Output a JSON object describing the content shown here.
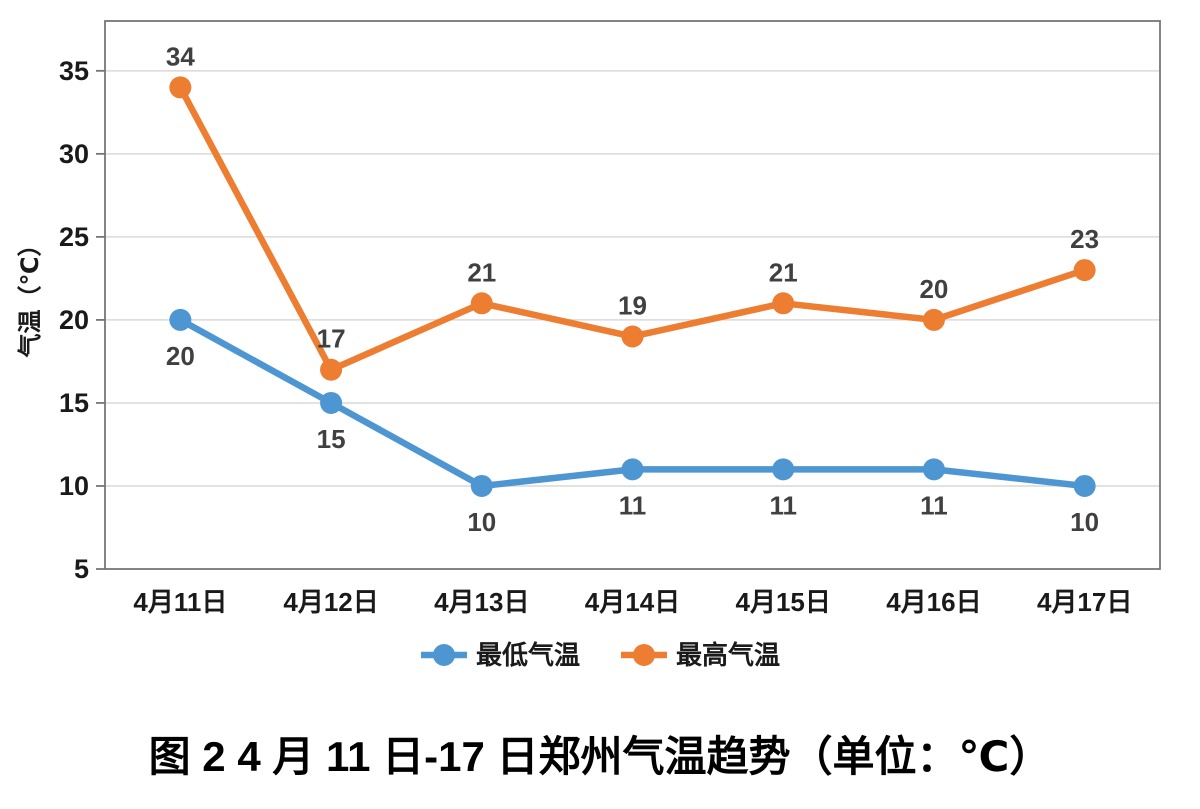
{
  "page": {
    "background": "#ffffff"
  },
  "chart_data": {
    "type": "line",
    "categories": [
      "4月11日",
      "4月12日",
      "4月13日",
      "4月14日",
      "4月15日",
      "4月16日",
      "4月17日"
    ],
    "series": [
      {
        "name": "最低气温",
        "color": "#4E96D2",
        "values": [
          20,
          15,
          10,
          11,
          11,
          11,
          10
        ],
        "label_position": "below"
      },
      {
        "name": "最高气温",
        "color": "#ED7D31",
        "values": [
          34,
          17,
          21,
          19,
          21,
          20,
          23
        ],
        "label_position": "above"
      }
    ],
    "title": "",
    "xlabel": "",
    "ylabel": "气温（℃）",
    "yticks": [
      5,
      10,
      15,
      20,
      25,
      30,
      35
    ],
    "ylim": [
      5,
      38
    ],
    "grid": true,
    "legend_position": "bottom",
    "axis_color": "#767676",
    "gridline_color": "#D9D9D9",
    "tick_label_color": "#1A1A1A",
    "data_label_color": "#404040"
  },
  "figure": {
    "caption": "图 2  4 月 11 日-17 日郑州气温趋势（单位：℃）"
  }
}
